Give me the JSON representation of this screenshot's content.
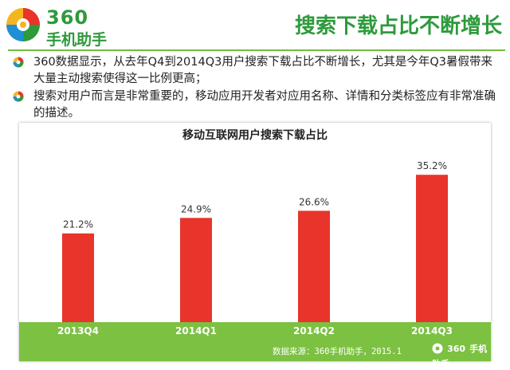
{
  "header": {
    "brand_number": "360",
    "brand_name": "手机助手",
    "title": "搜索下载占比不断增长"
  },
  "bullets": [
    "360数据显示，从去年Q4到2014Q3用户搜索下载占比不断增长，尤其是今年Q3暑假带来大量主动搜索使得这一比例更高；",
    "搜索对用户而言是非常重要的，移动应用开发者对应用名称、详情和分类标签应有非常准确的描述。"
  ],
  "chart": {
    "source": "数据来源：360手机助手，2015.1",
    "footer_logo_number": "360",
    "footer_logo_name": "手机助手"
  },
  "chart_data": {
    "type": "bar",
    "title": "移动互联网用户搜索下载占比",
    "categories": [
      "2013Q4",
      "2014Q1",
      "2014Q2",
      "2014Q3"
    ],
    "values": [
      21.2,
      24.9,
      26.6,
      35.2
    ],
    "value_labels": [
      "21.2%",
      "24.9%",
      "26.6%",
      "35.2%"
    ],
    "unit": "%",
    "ylim": [
      0,
      40
    ],
    "bar_color": "#e8342a",
    "strip_color": "#7cc142",
    "grid": false,
    "legend": "none"
  },
  "colors": {
    "brand_green": "#2e9a3c",
    "rule_green": "#6fbf3a"
  }
}
